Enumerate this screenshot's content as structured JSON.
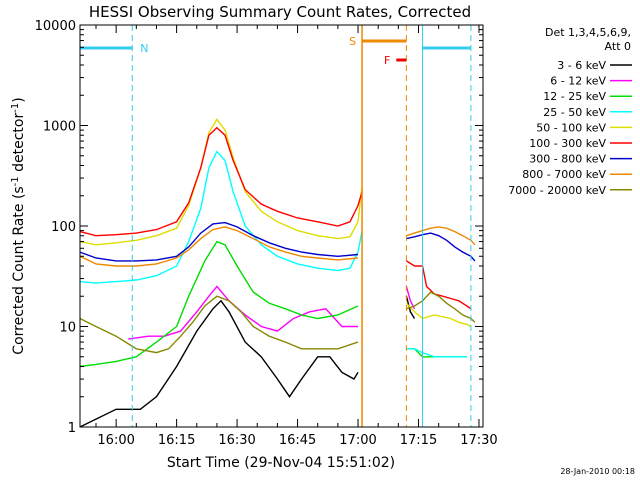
{
  "chart_data": {
    "type": "line",
    "title": "HESSI Observing Summary Count Rates, Corrected",
    "xlabel": "Start Time (29-Nov-04 15:51:02)",
    "ylabel": "Corrected Count Rate (s⁻¹ detector⁻¹)",
    "y_scale": "log",
    "ylim": [
      1,
      10000
    ],
    "xlim": [
      "15:51:02",
      "17:31:00"
    ],
    "x_ticks": [
      "16:00",
      "16:15",
      "16:30",
      "16:45",
      "17:00",
      "17:15",
      "17:30"
    ],
    "y_ticks": [
      "1",
      "10",
      "100",
      "1000",
      "10000"
    ],
    "legend": {
      "title_line1": "Det 1,3,4,5,6,9,",
      "title_line2": "Att 0",
      "placement": "top-right, outside plot"
    },
    "annotations": {
      "night_label": "N",
      "saa_label": "S",
      "flare_label": "F"
    },
    "footer_date": "28-Jan-2010 00:18",
    "intervals": {
      "night": [
        [
          "15:51:02",
          "16:04:00"
        ],
        [
          "17:16:00",
          "17:28:00"
        ]
      ],
      "saa": [
        [
          "17:01:00",
          "17:12:00"
        ]
      ],
      "flare": [
        [
          "17:09:30",
          "17:12:00"
        ]
      ]
    },
    "series": [
      {
        "name": "3 - 6 keV",
        "color": "#000000",
        "points": [
          [
            "15:51",
            "1"
          ],
          [
            "16:00",
            "1.5"
          ],
          [
            "16:06",
            "1.5"
          ],
          [
            "16:10",
            "2"
          ],
          [
            "16:15",
            "4"
          ],
          [
            "16:20",
            "9"
          ],
          [
            "16:24",
            "15"
          ],
          [
            "16:26",
            "18"
          ],
          [
            "16:28",
            "14"
          ],
          [
            "16:32",
            "7"
          ],
          [
            "16:36",
            "5"
          ],
          [
            "16:40",
            "3"
          ],
          [
            "16:43",
            "2"
          ],
          [
            "16:46",
            "3"
          ],
          [
            "16:50",
            "5"
          ],
          [
            "16:53",
            "5"
          ],
          [
            "16:56",
            "3.5"
          ],
          [
            "16:59",
            "3"
          ],
          [
            "17:00",
            "3.5"
          ]
        ]
      },
      {
        "name": "6 - 12 keV",
        "color": "#ff00ff",
        "points": [
          [
            "16:03",
            "7.5"
          ],
          [
            "16:08",
            "8"
          ],
          [
            "16:12",
            "8"
          ],
          [
            "16:16",
            "9"
          ],
          [
            "16:20",
            "14"
          ],
          [
            "16:23",
            "20"
          ],
          [
            "16:25",
            "25"
          ],
          [
            "16:28",
            "18"
          ],
          [
            "16:32",
            "13"
          ],
          [
            "16:36",
            "10"
          ],
          [
            "16:40",
            "9"
          ],
          [
            "16:44",
            "12"
          ],
          [
            "16:48",
            "14"
          ],
          [
            "16:52",
            "15"
          ],
          [
            "16:56",
            "10"
          ],
          [
            "17:00",
            "10"
          ]
        ]
      },
      {
        "name": "12 - 25 keV",
        "color": "#00dd00",
        "points": [
          [
            "15:51",
            "4"
          ],
          [
            "15:55",
            "4.2"
          ],
          [
            "16:00",
            "4.5"
          ],
          [
            "16:05",
            "5"
          ],
          [
            "16:10",
            "7"
          ],
          [
            "16:15",
            "10"
          ],
          [
            "16:18",
            "20"
          ],
          [
            "16:22",
            "45"
          ],
          [
            "16:25",
            "70"
          ],
          [
            "16:27",
            "65"
          ],
          [
            "16:30",
            "40"
          ],
          [
            "16:34",
            "22"
          ],
          [
            "16:38",
            "17"
          ],
          [
            "16:42",
            "15"
          ],
          [
            "16:46",
            "13"
          ],
          [
            "16:50",
            "12"
          ],
          [
            "16:55",
            "13"
          ],
          [
            "17:00",
            "16"
          ]
        ]
      },
      {
        "name": "25 - 50 keV",
        "color": "#00ffff",
        "points": [
          [
            "15:51",
            "28"
          ],
          [
            "15:55",
            "27"
          ],
          [
            "16:00",
            "28"
          ],
          [
            "16:05",
            "29"
          ],
          [
            "16:10",
            "32"
          ],
          [
            "16:15",
            "40"
          ],
          [
            "16:18",
            "70"
          ],
          [
            "16:21",
            "150"
          ],
          [
            "16:23",
            "380"
          ],
          [
            "16:25",
            "550"
          ],
          [
            "16:27",
            "450"
          ],
          [
            "16:29",
            "220"
          ],
          [
            "16:32",
            "100"
          ],
          [
            "16:36",
            "65"
          ],
          [
            "16:40",
            "50"
          ],
          [
            "16:45",
            "42"
          ],
          [
            "16:50",
            "38"
          ],
          [
            "16:55",
            "36"
          ],
          [
            "16:58",
            "38"
          ],
          [
            "17:00",
            "55"
          ],
          [
            "17:01",
            "90"
          ]
        ]
      },
      {
        "name": "50 - 100 keV",
        "color": "#dddd00",
        "points": [
          [
            "15:51",
            "70"
          ],
          [
            "15:55",
            "65"
          ],
          [
            "16:00",
            "68"
          ],
          [
            "16:05",
            "72"
          ],
          [
            "16:10",
            "80"
          ],
          [
            "16:15",
            "95"
          ],
          [
            "16:18",
            "160"
          ],
          [
            "16:21",
            "380"
          ],
          [
            "16:23",
            "850"
          ],
          [
            "16:25",
            "1150"
          ],
          [
            "16:27",
            "900"
          ],
          [
            "16:29",
            "480"
          ],
          [
            "16:32",
            "220"
          ],
          [
            "16:36",
            "140"
          ],
          [
            "16:40",
            "110"
          ],
          [
            "16:45",
            "90"
          ],
          [
            "16:50",
            "80"
          ],
          [
            "16:55",
            "75"
          ],
          [
            "16:58",
            "78"
          ],
          [
            "17:00",
            "110"
          ],
          [
            "17:01",
            "250"
          ]
        ]
      },
      {
        "name": "100 - 300 keV",
        "color": "#ff0000",
        "points": [
          [
            "15:51",
            "88"
          ],
          [
            "15:55",
            "80"
          ],
          [
            "16:00",
            "82"
          ],
          [
            "16:05",
            "85"
          ],
          [
            "16:10",
            "92"
          ],
          [
            "16:15",
            "110"
          ],
          [
            "16:18",
            "170"
          ],
          [
            "16:21",
            "380"
          ],
          [
            "16:23",
            "800"
          ],
          [
            "16:25",
            "950"
          ],
          [
            "16:27",
            "800"
          ],
          [
            "16:29",
            "450"
          ],
          [
            "16:32",
            "230"
          ],
          [
            "16:36",
            "165"
          ],
          [
            "16:40",
            "140"
          ],
          [
            "16:45",
            "120"
          ],
          [
            "16:50",
            "110"
          ],
          [
            "16:55",
            "100"
          ],
          [
            "16:58",
            "110"
          ],
          [
            "17:00",
            "160"
          ],
          [
            "17:01",
            "220"
          ]
        ]
      },
      {
        "name": "300 - 800 keV",
        "color": "#0000cc",
        "points": [
          [
            "15:51",
            "55"
          ],
          [
            "15:55",
            "48"
          ],
          [
            "16:00",
            "45"
          ],
          [
            "16:05",
            "45"
          ],
          [
            "16:10",
            "46"
          ],
          [
            "16:15",
            "50"
          ],
          [
            "16:18",
            "62"
          ],
          [
            "16:21",
            "85"
          ],
          [
            "16:24",
            "105"
          ],
          [
            "16:27",
            "108"
          ],
          [
            "16:30",
            "98"
          ],
          [
            "16:34",
            "80"
          ],
          [
            "16:38",
            "68"
          ],
          [
            "16:42",
            "60"
          ],
          [
            "16:46",
            "55"
          ],
          [
            "16:50",
            "52"
          ],
          [
            "16:55",
            "50"
          ],
          [
            "17:00",
            "52"
          ]
        ]
      },
      {
        "name": "800 - 7000 keV",
        "color": "#ee8800",
        "points": [
          [
            "15:51",
            "50"
          ],
          [
            "15:55",
            "42"
          ],
          [
            "16:00",
            "40"
          ],
          [
            "16:05",
            "40"
          ],
          [
            "16:10",
            "42"
          ],
          [
            "16:15",
            "48"
          ],
          [
            "16:18",
            "58"
          ],
          [
            "16:21",
            "75"
          ],
          [
            "16:24",
            "92"
          ],
          [
            "16:27",
            "98"
          ],
          [
            "16:30",
            "90"
          ],
          [
            "16:34",
            "75"
          ],
          [
            "16:38",
            "62"
          ],
          [
            "16:42",
            "55"
          ],
          [
            "16:46",
            "50"
          ],
          [
            "16:50",
            "48"
          ],
          [
            "16:55",
            "46"
          ],
          [
            "17:00",
            "48"
          ]
        ]
      },
      {
        "name": "7000 - 20000 keV",
        "color": "#888800",
        "points": [
          [
            "15:51",
            "12"
          ],
          [
            "15:55",
            "10"
          ],
          [
            "16:00",
            "8"
          ],
          [
            "16:05",
            "6"
          ],
          [
            "16:10",
            "5.5"
          ],
          [
            "16:13",
            "6"
          ],
          [
            "16:16",
            "8"
          ],
          [
            "16:19",
            "11"
          ],
          [
            "16:22",
            "16"
          ],
          [
            "16:25",
            "20"
          ],
          [
            "16:28",
            "18"
          ],
          [
            "16:31",
            "14"
          ],
          [
            "16:34",
            "10"
          ],
          [
            "16:38",
            "8"
          ],
          [
            "16:42",
            "7"
          ],
          [
            "16:46",
            "6"
          ],
          [
            "16:50",
            "6"
          ],
          [
            "16:55",
            "6"
          ],
          [
            "17:00",
            "7"
          ]
        ]
      }
    ],
    "after_saa": [
      {
        "name": "3 - 6 keV",
        "points": [
          [
            "17:12",
            "20"
          ],
          [
            "17:13",
            "14"
          ],
          [
            "17:14",
            "12"
          ]
        ]
      },
      {
        "name": "6 - 12 keV",
        "points": [
          [
            "17:12",
            "25"
          ],
          [
            "17:13",
            "18"
          ],
          [
            "17:14",
            "15"
          ]
        ]
      },
      {
        "name": "12 - 25 keV",
        "points": [
          [
            "17:12",
            "6"
          ],
          [
            "17:13",
            "6"
          ],
          [
            "17:14",
            "6"
          ],
          [
            "17:16",
            "5"
          ],
          [
            "17:19",
            "5"
          ],
          [
            "17:21",
            "5"
          ],
          [
            "17:23",
            "5"
          ],
          [
            "17:25",
            "5"
          ],
          [
            "17:27",
            "5"
          ]
        ]
      },
      {
        "name": "25 - 50 keV",
        "points": [
          [
            "17:12",
            "6"
          ],
          [
            "17:13",
            "6"
          ],
          [
            "17:14",
            "6"
          ],
          [
            "17:16",
            "5.5"
          ],
          [
            "17:19",
            "5"
          ],
          [
            "17:21",
            "5"
          ],
          [
            "17:23",
            "5"
          ],
          [
            "17:25",
            "5"
          ],
          [
            "17:27",
            "5"
          ]
        ]
      },
      {
        "name": "50 - 100 keV",
        "points": [
          [
            "17:12",
            "17"
          ],
          [
            "17:14",
            "14"
          ],
          [
            "17:16",
            "12"
          ],
          [
            "17:19",
            "13"
          ],
          [
            "17:21",
            "12.5"
          ],
          [
            "17:23",
            "12"
          ],
          [
            "17:25",
            "11"
          ],
          [
            "17:27",
            "10.5"
          ],
          [
            "17:28",
            "10"
          ]
        ]
      },
      {
        "name": "100 - 300 keV",
        "points": [
          [
            "17:12",
            "45"
          ],
          [
            "17:14",
            "40"
          ],
          [
            "17:15",
            "40"
          ],
          [
            "17:16",
            "40"
          ],
          [
            "17:17",
            "25"
          ],
          [
            "17:19",
            "21"
          ],
          [
            "17:21",
            "20"
          ],
          [
            "17:23",
            "19"
          ],
          [
            "17:25",
            "18"
          ],
          [
            "17:27",
            "16"
          ],
          [
            "17:28",
            "15"
          ]
        ]
      },
      {
        "name": "300 - 800 keV",
        "points": [
          [
            "17:12",
            "75"
          ],
          [
            "17:14",
            "78"
          ],
          [
            "17:16",
            "82"
          ],
          [
            "17:18",
            "85"
          ],
          [
            "17:20",
            "80"
          ],
          [
            "17:22",
            "72"
          ],
          [
            "17:24",
            "62"
          ],
          [
            "17:26",
            "55"
          ],
          [
            "17:28",
            "50"
          ],
          [
            "17:29",
            "45"
          ]
        ]
      },
      {
        "name": "800 - 7000 keV",
        "points": [
          [
            "17:12",
            "80"
          ],
          [
            "17:14",
            "85"
          ],
          [
            "17:16",
            "90"
          ],
          [
            "17:18",
            "95"
          ],
          [
            "17:20",
            "98"
          ],
          [
            "17:22",
            "95"
          ],
          [
            "17:24",
            "88"
          ],
          [
            "17:26",
            "80"
          ],
          [
            "17:28",
            "72"
          ],
          [
            "17:29",
            "65"
          ]
        ]
      },
      {
        "name": "7000 - 20000 keV",
        "points": [
          [
            "17:12",
            "15"
          ],
          [
            "17:14",
            "16"
          ],
          [
            "17:16",
            "18"
          ],
          [
            "17:18",
            "22"
          ],
          [
            "17:20",
            "20"
          ],
          [
            "17:22",
            "17"
          ],
          [
            "17:24",
            "15"
          ],
          [
            "17:26",
            "13"
          ],
          [
            "17:28",
            "12"
          ],
          [
            "17:29",
            "11"
          ]
        ]
      }
    ]
  }
}
